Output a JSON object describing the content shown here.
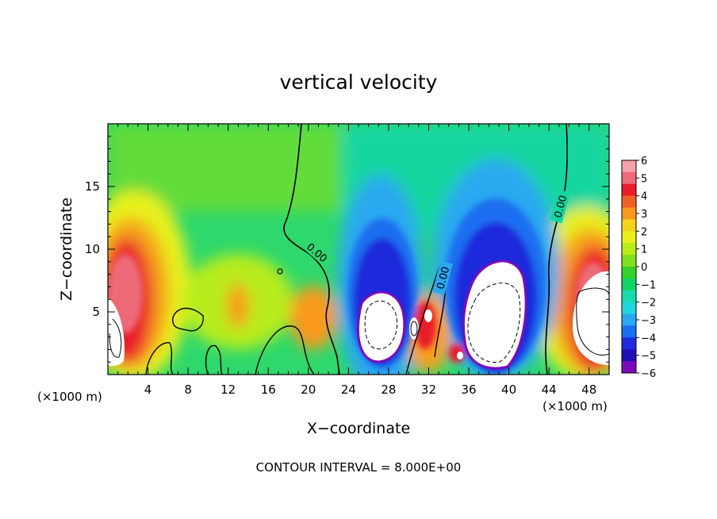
{
  "chart_data": {
    "type": "heatmap",
    "title": "vertical velocity",
    "xlabel": "X−coordinate",
    "ylabel": "Z−coordinate",
    "x_unit_label": "(×1000 m)",
    "y_unit_label": "(×1000 m)",
    "xlim": [
      0,
      50
    ],
    "ylim": [
      0,
      20
    ],
    "x_ticks": [
      4,
      8,
      12,
      16,
      20,
      24,
      28,
      32,
      36,
      40,
      44,
      48
    ],
    "y_ticks": [
      5,
      10,
      15
    ],
    "colorbar": {
      "ticks": [
        6,
        5,
        4,
        3,
        2,
        1,
        0,
        -1,
        -2,
        -3,
        -4,
        -5,
        -6
      ],
      "tick_labels": [
        "6",
        "5",
        "4",
        "3",
        "2",
        "1",
        "0",
        "−1",
        "−2",
        "−3",
        "−4",
        "−5",
        "−6"
      ],
      "colors": [
        "#f4a3a8",
        "#ee6a78",
        "#ea1c2c",
        "#f0602a",
        "#f99a1e",
        "#f6d21c",
        "#e8f01a",
        "#b8ec1c",
        "#7fe01e",
        "#35d22a",
        "#10d466",
        "#18dcae",
        "#20d6dc",
        "#2aa8f0",
        "#1a6ef0",
        "#1e2cdc",
        "#1e10b4",
        "#7a0cb8"
      ]
    },
    "contour_labels": [
      "0.00",
      "0.00",
      "0.00"
    ],
    "footer": "CONTOUR INTERVAL = 8.000E+00"
  }
}
